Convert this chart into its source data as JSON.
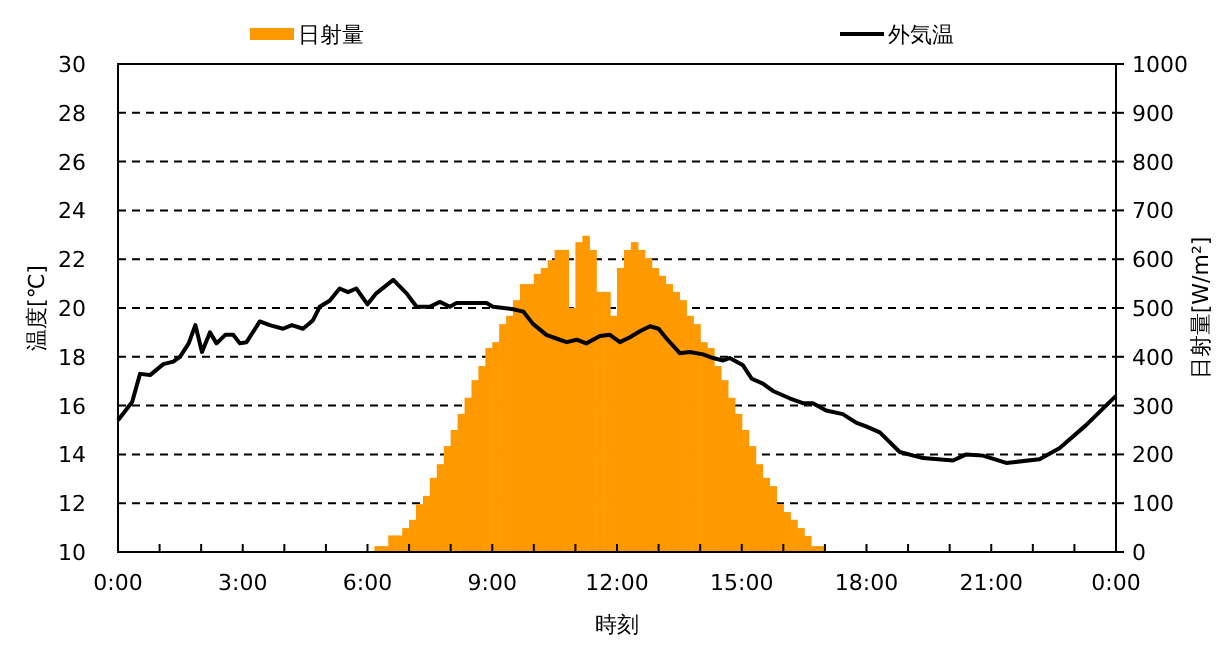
{
  "chart_data": {
    "type": "bar",
    "xlabel": "時刻",
    "ylabel": "温度[℃]",
    "y2label": "日射量[W/m²]",
    "legend": "top",
    "grid": "y",
    "xlim": [
      0,
      24
    ],
    "xticks": [
      {
        "value": 0,
        "label": "0:00"
      },
      {
        "value": 1,
        "label": null
      },
      {
        "value": 2,
        "label": null
      },
      {
        "value": 3,
        "label": "3:00"
      },
      {
        "value": 4,
        "label": null
      },
      {
        "value": 5,
        "label": null
      },
      {
        "value": 6,
        "label": "6:00"
      },
      {
        "value": 7,
        "label": null
      },
      {
        "value": 8,
        "label": null
      },
      {
        "value": 9,
        "label": "9:00"
      },
      {
        "value": 10,
        "label": null
      },
      {
        "value": 11,
        "label": null
      },
      {
        "value": 12,
        "label": "12:00"
      },
      {
        "value": 13,
        "label": null
      },
      {
        "value": 14,
        "label": null
      },
      {
        "value": 15,
        "label": "15:00"
      },
      {
        "value": 16,
        "label": null
      },
      {
        "value": 17,
        "label": null
      },
      {
        "value": 18,
        "label": "18:00"
      },
      {
        "value": 19,
        "label": null
      },
      {
        "value": 20,
        "label": null
      },
      {
        "value": 21,
        "label": "21:00"
      },
      {
        "value": 22,
        "label": null
      },
      {
        "value": 23,
        "label": null
      },
      {
        "value": 24,
        "label": "0:00"
      }
    ],
    "ylim": [
      10,
      30
    ],
    "yticks": [
      10,
      12,
      14,
      16,
      18,
      20,
      22,
      24,
      26,
      28,
      30
    ],
    "y2lim": [
      0,
      1000
    ],
    "y2ticks": [
      0,
      100,
      200,
      300,
      400,
      500,
      600,
      700,
      800,
      900,
      1000
    ],
    "series": [
      {
        "name": "日射量",
        "axis": "y2",
        "color": "#ff9900",
        "x": [
          6.25,
          6.417,
          6.583,
          6.75,
          6.917,
          7.083,
          7.25,
          7.417,
          7.583,
          7.75,
          7.917,
          8.083,
          8.25,
          8.417,
          8.583,
          8.75,
          8.917,
          9.083,
          9.25,
          9.417,
          9.583,
          9.75,
          9.917,
          10.083,
          10.25,
          10.417,
          10.583,
          10.75,
          10.917,
          11.083,
          11.25,
          11.417,
          11.583,
          11.75,
          11.917,
          12.083,
          12.25,
          12.417,
          12.583,
          12.75,
          12.917,
          13.083,
          13.25,
          13.417,
          13.583,
          13.75,
          13.917,
          14.083,
          14.25,
          14.417,
          14.583,
          14.75,
          14.917,
          15.083,
          15.25,
          15.417,
          15.583,
          15.75,
          15.917,
          16.083,
          16.25,
          16.417,
          16.583,
          16.75,
          16.917
        ],
        "values": [
          12,
          12,
          34,
          34,
          49,
          66,
          98,
          115,
          152,
          180,
          217,
          250,
          283,
          316,
          352,
          381,
          418,
          430,
          467,
          484,
          516,
          549,
          549,
          570,
          582,
          598,
          619,
          619,
          500,
          635,
          648,
          619,
          533,
          533,
          484,
          582,
          619,
          635,
          619,
          602,
          582,
          566,
          549,
          533,
          516,
          484,
          467,
          430,
          418,
          381,
          352,
          316,
          283,
          250,
          217,
          180,
          152,
          135,
          98,
          82,
          66,
          49,
          33,
          12,
          12
        ]
      },
      {
        "name": "外気温",
        "type": "line",
        "axis": "y",
        "color": "#000000",
        "x": [
          0,
          0.34,
          0.53,
          0.77,
          1.09,
          1.33,
          1.49,
          1.7,
          1.86,
          2.02,
          2.21,
          2.37,
          2.58,
          2.77,
          2.93,
          3.09,
          3.41,
          3.65,
          3.97,
          4.18,
          4.45,
          4.69,
          4.85,
          5.09,
          5.33,
          5.53,
          5.73,
          6.0,
          6.21,
          6.62,
          6.94,
          7.18,
          7.5,
          7.74,
          7.98,
          8.14,
          8.86,
          9.02,
          9.5,
          9.75,
          9.98,
          10.3,
          10.54,
          10.79,
          11.03,
          11.26,
          11.59,
          11.83,
          12.07,
          12.31,
          12.55,
          12.79,
          13.0,
          13.19,
          13.51,
          13.75,
          14.07,
          14.31,
          14.55,
          14.71,
          15.03,
          15.24,
          15.51,
          15.75,
          16.15,
          16.47,
          16.71,
          17.03,
          17.43,
          17.75,
          17.99,
          18.32,
          18.8,
          19.36,
          20.08,
          20.4,
          20.8,
          21.36,
          22.16,
          22.64,
          23.28,
          24
        ],
        "values": [
          15.4,
          16.15,
          17.3,
          17.25,
          17.7,
          17.8,
          18.0,
          18.55,
          19.3,
          18.2,
          19.0,
          18.55,
          18.9,
          18.9,
          18.55,
          18.6,
          19.45,
          19.3,
          19.15,
          19.3,
          19.15,
          19.5,
          20.05,
          20.3,
          20.8,
          20.65,
          20.8,
          20.15,
          20.6,
          21.15,
          20.6,
          20.05,
          20.05,
          20.25,
          20.05,
          20.2,
          20.2,
          20.05,
          19.95,
          19.85,
          19.35,
          18.9,
          18.75,
          18.6,
          18.7,
          18.55,
          18.85,
          18.9,
          18.6,
          18.8,
          19.05,
          19.25,
          19.15,
          18.75,
          18.15,
          18.2,
          18.1,
          17.95,
          17.85,
          17.95,
          17.65,
          17.1,
          16.9,
          16.6,
          16.3,
          16.1,
          16.1,
          15.8,
          15.65,
          15.3,
          15.15,
          14.9,
          14.1,
          13.85,
          13.75,
          14.0,
          13.95,
          13.65,
          13.8,
          14.25,
          15.2,
          16.4
        ]
      }
    ]
  }
}
